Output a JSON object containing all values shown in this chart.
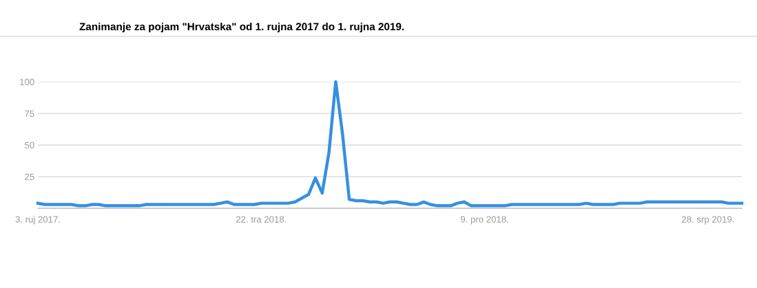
{
  "chart_data": {
    "type": "line",
    "title": "Zanimanje za pojam \"Hrvatska\" od 1. rujna 2017 do 1. rujna 2019.",
    "x": [
      "2017-09-03",
      "2017-09-10",
      "2017-09-17",
      "2017-09-24",
      "2017-10-01",
      "2017-10-08",
      "2017-10-15",
      "2017-10-22",
      "2017-10-29",
      "2017-11-05",
      "2017-11-12",
      "2017-11-19",
      "2017-11-26",
      "2017-12-03",
      "2017-12-10",
      "2017-12-17",
      "2017-12-24",
      "2017-12-31",
      "2018-01-07",
      "2018-01-14",
      "2018-01-21",
      "2018-01-28",
      "2018-02-04",
      "2018-02-11",
      "2018-02-18",
      "2018-02-25",
      "2018-03-04",
      "2018-03-11",
      "2018-03-18",
      "2018-03-25",
      "2018-04-01",
      "2018-04-08",
      "2018-04-15",
      "2018-04-22",
      "2018-04-29",
      "2018-05-06",
      "2018-05-13",
      "2018-05-20",
      "2018-05-27",
      "2018-06-03",
      "2018-06-10",
      "2018-06-17",
      "2018-06-24",
      "2018-07-01",
      "2018-07-08",
      "2018-07-15",
      "2018-07-22",
      "2018-07-29",
      "2018-08-05",
      "2018-08-12",
      "2018-08-19",
      "2018-08-26",
      "2018-09-02",
      "2018-09-09",
      "2018-09-16",
      "2018-09-23",
      "2018-09-30",
      "2018-10-07",
      "2018-10-14",
      "2018-10-21",
      "2018-10-28",
      "2018-11-04",
      "2018-11-11",
      "2018-11-18",
      "2018-11-25",
      "2018-12-02",
      "2018-12-09",
      "2018-12-16",
      "2018-12-23",
      "2018-12-30",
      "2019-01-06",
      "2019-01-13",
      "2019-01-20",
      "2019-01-27",
      "2019-02-03",
      "2019-02-10",
      "2019-02-17",
      "2019-02-24",
      "2019-03-03",
      "2019-03-10",
      "2019-03-17",
      "2019-03-24",
      "2019-03-31",
      "2019-04-07",
      "2019-04-14",
      "2019-04-21",
      "2019-04-28",
      "2019-05-05",
      "2019-05-12",
      "2019-05-19",
      "2019-05-26",
      "2019-06-02",
      "2019-06-09",
      "2019-06-16",
      "2019-06-23",
      "2019-06-30",
      "2019-07-07",
      "2019-07-14",
      "2019-07-21",
      "2019-07-28",
      "2019-08-04",
      "2019-08-11",
      "2019-08-18",
      "2019-08-25",
      "2019-09-01"
    ],
    "series": [
      {
        "color": "#3590e0",
        "values": [
          4,
          3,
          3,
          3,
          3,
          3,
          2,
          2,
          3,
          3,
          2,
          2,
          2,
          2,
          2,
          2,
          3,
          3,
          3,
          3,
          3,
          3,
          3,
          3,
          3,
          3,
          3,
          4,
          5,
          3,
          3,
          3,
          3,
          4,
          4,
          4,
          4,
          4,
          5,
          8,
          11,
          24,
          12,
          44,
          100,
          59,
          7,
          6,
          6,
          5,
          5,
          4,
          5,
          5,
          4,
          3,
          3,
          5,
          3,
          2,
          2,
          2,
          4,
          5,
          2,
          2,
          2,
          2,
          2,
          2,
          3,
          3,
          3,
          3,
          3,
          3,
          3,
          3,
          3,
          3,
          3,
          4,
          3,
          3,
          3,
          3,
          4,
          4,
          4,
          4,
          5,
          5,
          5,
          5,
          5,
          5,
          5,
          5,
          5,
          5,
          5,
          5,
          4,
          4,
          4
        ]
      }
    ],
    "xlim": [
      "2017-09-03",
      "2019-09-01"
    ],
    "xticks": [
      {
        "value": "2017-09-03",
        "label": "3. ruj 2017."
      },
      {
        "value": "2018-04-22",
        "label": "22. tra 2018."
      },
      {
        "value": "2018-12-09",
        "label": "9. pro 2018."
      },
      {
        "value": "2019-07-28",
        "label": "28. srp 2019."
      }
    ],
    "ylim": [
      0,
      100
    ],
    "yticks": [
      25,
      50,
      75,
      100
    ],
    "grid": "y",
    "marker": "none",
    "line_style": "solid"
  }
}
